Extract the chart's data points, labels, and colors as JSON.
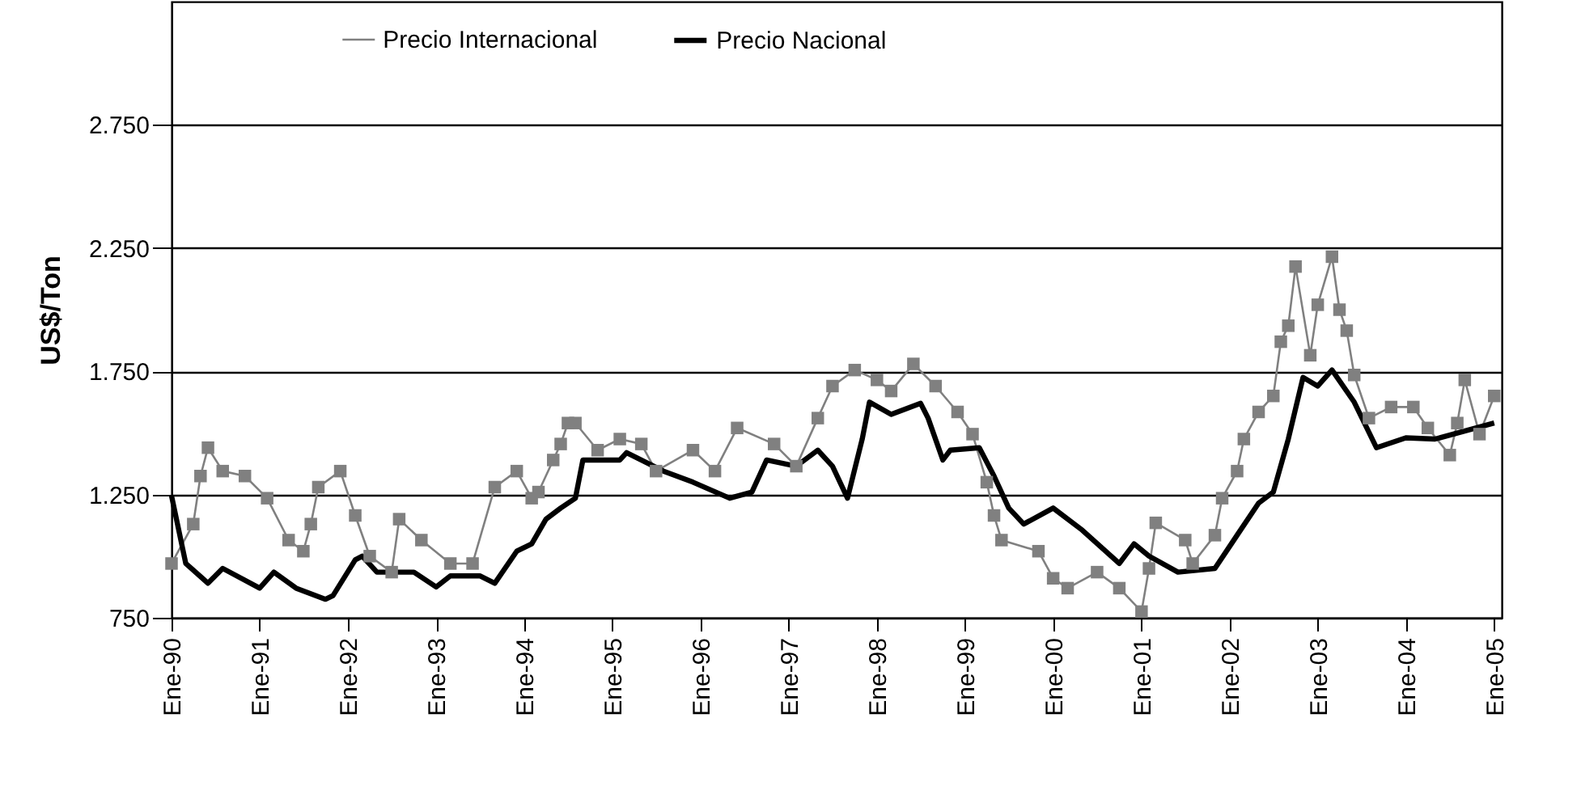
{
  "chart_data": {
    "type": "line",
    "ylabel": "US$/Ton",
    "xlim": [
      "1990-01",
      "2005-02"
    ],
    "ylim": [
      750,
      3250
    ],
    "yticks": [
      750,
      {
        "value": 1250,
        "label": "1.250"
      },
      {
        "value": 1750,
        "label": "1.750"
      },
      {
        "value": 2250,
        "label": "2.250"
      },
      {
        "value": 2750,
        "label": "2.750"
      }
    ],
    "xticks": [
      {
        "value": "1990-01",
        "label": "Ene-90"
      },
      {
        "value": "1991-01",
        "label": "Ene-91"
      },
      {
        "value": "1992-01",
        "label": "Ene-92"
      },
      {
        "value": "1993-01",
        "label": "Ene-93"
      },
      {
        "value": "1994-01",
        "label": "Ene-94"
      },
      {
        "value": "1995-01",
        "label": "Ene-95"
      },
      {
        "value": "1996-01",
        "label": "Ene-96"
      },
      {
        "value": "1997-01",
        "label": "Ene-97"
      },
      {
        "value": "1998-01",
        "label": "Ene-98"
      },
      {
        "value": "1999-01",
        "label": "Ene-99"
      },
      {
        "value": "2000-01",
        "label": "Ene-00"
      },
      {
        "value": "2001-01",
        "label": "Ene-01"
      },
      {
        "value": "2002-01",
        "label": "Ene-02"
      },
      {
        "value": "2003-01",
        "label": "Ene-03"
      },
      {
        "value": "2004-01",
        "label": "Ene-04"
      },
      {
        "value": "2005-01",
        "label": "Ene-05"
      }
    ],
    "grid": "y",
    "legend": "top",
    "series": [
      {
        "name": "Precio Internacional",
        "color": "#808080",
        "marker": "square",
        "x": [
          "1990-01",
          "1990-04",
          "1990-05",
          "1990-06",
          "1990-08",
          "1990-11",
          "1991-02",
          "1991-05",
          "1991-07",
          "1991-08",
          "1991-09",
          "1991-12",
          "1992-02",
          "1992-04",
          "1992-07",
          "1992-08",
          "1992-11",
          "1993-03",
          "1993-06",
          "1993-09",
          "1993-12",
          "1994-02",
          "1994-03",
          "1994-05",
          "1994-06",
          "1994-07",
          "1994-08",
          "1994-11",
          "1995-02",
          "1995-05",
          "1995-07",
          "1995-12",
          "1996-03",
          "1996-06",
          "1996-11",
          "1997-02",
          "1997-05",
          "1997-07",
          "1997-10",
          "1998-01",
          "1998-03",
          "1998-06",
          "1998-09",
          "1998-12",
          "1999-02",
          "1999-04",
          "1999-05",
          "1999-06",
          "1999-11",
          "2000-01",
          "2000-03",
          "2000-07",
          "2000-10",
          "2001-01",
          "2001-02",
          "2001-03",
          "2001-07",
          "2001-08",
          "2001-11",
          "2001-12",
          "2002-02",
          "2002-03",
          "2002-05",
          "2002-07",
          "2002-08",
          "2002-09",
          "2002-10",
          "2002-12",
          "2003-01",
          "2003-03",
          "2003-04",
          "2003-05",
          "2003-06",
          "2003-08",
          "2003-11",
          "2004-02",
          "2004-04",
          "2004-07",
          "2004-08",
          "2004-09",
          "2004-11",
          "2005-01"
        ],
        "values": [
          970,
          1130,
          1325,
          1440,
          1345,
          1325,
          1235,
          1065,
          1020,
          1130,
          1280,
          1345,
          1165,
          1000,
          935,
          1150,
          1065,
          970,
          970,
          1280,
          1345,
          1235,
          1260,
          1390,
          1455,
          1540,
          1540,
          1430,
          1475,
          1455,
          1345,
          1430,
          1345,
          1520,
          1455,
          1365,
          1560,
          1690,
          1755,
          1715,
          1670,
          1780,
          1690,
          1585,
          1495,
          1300,
          1165,
          1065,
          1020,
          910,
          870,
          935,
          870,
          775,
          950,
          1135,
          1065,
          970,
          1085,
          1235,
          1345,
          1475,
          1585,
          1650,
          1870,
          1935,
          2175,
          1815,
          2020,
          2215,
          2000,
          1915,
          1735,
          1560,
          1605,
          1605,
          1520,
          1410,
          1540,
          1715,
          1495,
          1650
        ]
      },
      {
        "name": "Precio Nacional",
        "color": "#000000",
        "marker": "none",
        "x": [
          "1990-01",
          "1990-03",
          "1990-06",
          "1990-08",
          "1991-01",
          "1991-03",
          "1991-06",
          "1991-10",
          "1991-11",
          "1992-02",
          "1992-03",
          "1992-05",
          "1992-10",
          "1993-01",
          "1993-03",
          "1993-07",
          "1993-09",
          "1993-12",
          "1994-02",
          "1994-04",
          "1994-06",
          "1994-08",
          "1994-09",
          "1995-02",
          "1995-03",
          "1995-08",
          "1995-12",
          "1996-05",
          "1996-08",
          "1996-10",
          "1997-02",
          "1997-05",
          "1997-07",
          "1997-09",
          "1997-11",
          "1997-12",
          "1998-03",
          "1998-07",
          "1998-08",
          "1998-10",
          "1998-11",
          "1999-03",
          "1999-05",
          "1999-07",
          "1999-09",
          "2000-01",
          "2000-05",
          "2000-10",
          "2000-12",
          "2001-02",
          "2001-06",
          "2001-11",
          "2002-02",
          "2002-05",
          "2002-07",
          "2002-09",
          "2002-11",
          "2003-01",
          "2003-03",
          "2003-06",
          "2003-09",
          "2004-01",
          "2004-05",
          "2005-01"
        ],
        "values": [
          1245,
          970,
          890,
          950,
          870,
          935,
          870,
          825,
          840,
          985,
          1000,
          935,
          935,
          875,
          920,
          920,
          890,
          1020,
          1050,
          1150,
          1195,
          1235,
          1390,
          1390,
          1420,
          1345,
          1300,
          1235,
          1260,
          1390,
          1365,
          1430,
          1365,
          1235,
          1475,
          1625,
          1575,
          1620,
          1560,
          1390,
          1430,
          1440,
          1325,
          1195,
          1130,
          1195,
          1105,
          970,
          1050,
          1000,
          935,
          950,
          1085,
          1215,
          1260,
          1475,
          1725,
          1690,
          1755,
          1625,
          1440,
          1480,
          1475,
          1540
        ]
      }
    ]
  }
}
